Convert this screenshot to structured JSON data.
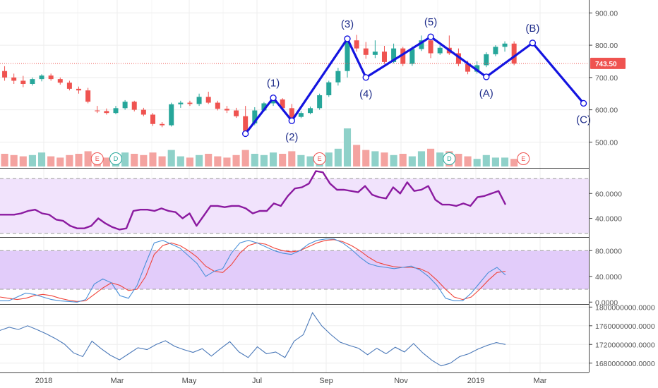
{
  "chart_data": [
    {
      "type": "candlestick",
      "panel": "price",
      "ylim": [
        420,
        940
      ],
      "y_ticks": [
        "500.00",
        "600.00",
        "700.00",
        "800.00",
        "900.00"
      ],
      "last_price": "743.50",
      "colors": {
        "up": "#26a69a",
        "down": "#ef5350",
        "wave": "#1414e0",
        "price_line": "#ef5350"
      },
      "candles": [
        {
          "o": 720,
          "h": 735,
          "l": 690,
          "c": 700
        },
        {
          "o": 700,
          "h": 712,
          "l": 680,
          "c": 690
        },
        {
          "o": 690,
          "h": 705,
          "l": 670,
          "c": 680
        },
        {
          "o": 680,
          "h": 700,
          "l": 675,
          "c": 695
        },
        {
          "o": 695,
          "h": 710,
          "l": 688,
          "c": 706
        },
        {
          "o": 706,
          "h": 712,
          "l": 690,
          "c": 695
        },
        {
          "o": 695,
          "h": 700,
          "l": 678,
          "c": 684
        },
        {
          "o": 684,
          "h": 690,
          "l": 660,
          "c": 665
        },
        {
          "o": 665,
          "h": 672,
          "l": 650,
          "c": 660
        },
        {
          "o": 660,
          "h": 668,
          "l": 620,
          "c": 625
        },
        {
          "o": 598,
          "h": 612,
          "l": 590,
          "c": 596
        },
        {
          "o": 596,
          "h": 604,
          "l": 585,
          "c": 590
        },
        {
          "o": 590,
          "h": 612,
          "l": 586,
          "c": 605
        },
        {
          "o": 605,
          "h": 630,
          "l": 600,
          "c": 625
        },
        {
          "o": 625,
          "h": 628,
          "l": 595,
          "c": 600
        },
        {
          "o": 600,
          "h": 606,
          "l": 580,
          "c": 585
        },
        {
          "o": 585,
          "h": 590,
          "l": 550,
          "c": 556
        },
        {
          "o": 556,
          "h": 562,
          "l": 546,
          "c": 552
        },
        {
          "o": 552,
          "h": 622,
          "l": 548,
          "c": 617
        },
        {
          "o": 617,
          "h": 628,
          "l": 606,
          "c": 622
        },
        {
          "o": 622,
          "h": 628,
          "l": 612,
          "c": 618
        },
        {
          "o": 618,
          "h": 650,
          "l": 612,
          "c": 640
        },
        {
          "o": 640,
          "h": 656,
          "l": 618,
          "c": 622
        },
        {
          "o": 622,
          "h": 628,
          "l": 598,
          "c": 603
        },
        {
          "o": 603,
          "h": 612,
          "l": 590,
          "c": 598
        },
        {
          "o": 598,
          "h": 606,
          "l": 575,
          "c": 580
        },
        {
          "o": 580,
          "h": 612,
          "l": 535,
          "c": 535
        },
        {
          "o": 558,
          "h": 608,
          "l": 552,
          "c": 598
        },
        {
          "o": 598,
          "h": 624,
          "l": 594,
          "c": 620
        },
        {
          "o": 620,
          "h": 640,
          "l": 612,
          "c": 632
        },
        {
          "o": 632,
          "h": 636,
          "l": 600,
          "c": 605
        },
        {
          "o": 605,
          "h": 618,
          "l": 560,
          "c": 565
        },
        {
          "o": 578,
          "h": 596,
          "l": 574,
          "c": 590
        },
        {
          "o": 590,
          "h": 610,
          "l": 586,
          "c": 605
        },
        {
          "o": 605,
          "h": 650,
          "l": 600,
          "c": 645
        },
        {
          "o": 645,
          "h": 690,
          "l": 640,
          "c": 685
        },
        {
          "o": 685,
          "h": 730,
          "l": 675,
          "c": 720
        },
        {
          "o": 720,
          "h": 830,
          "l": 700,
          "c": 815
        },
        {
          "o": 815,
          "h": 832,
          "l": 780,
          "c": 790
        },
        {
          "o": 790,
          "h": 810,
          "l": 758,
          "c": 770
        },
        {
          "o": 770,
          "h": 815,
          "l": 760,
          "c": 780
        },
        {
          "o": 780,
          "h": 798,
          "l": 742,
          "c": 748
        },
        {
          "o": 748,
          "h": 805,
          "l": 744,
          "c": 790
        },
        {
          "o": 790,
          "h": 795,
          "l": 735,
          "c": 742
        },
        {
          "o": 742,
          "h": 796,
          "l": 736,
          "c": 788
        },
        {
          "o": 788,
          "h": 830,
          "l": 782,
          "c": 815
        },
        {
          "o": 815,
          "h": 825,
          "l": 760,
          "c": 775
        },
        {
          "o": 775,
          "h": 800,
          "l": 770,
          "c": 792
        },
        {
          "o": 792,
          "h": 830,
          "l": 770,
          "c": 775
        },
        {
          "o": 775,
          "h": 790,
          "l": 735,
          "c": 742
        },
        {
          "o": 742,
          "h": 752,
          "l": 710,
          "c": 718
        },
        {
          "o": 718,
          "h": 750,
          "l": 712,
          "c": 738
        },
        {
          "o": 738,
          "h": 778,
          "l": 732,
          "c": 772
        },
        {
          "o": 772,
          "h": 800,
          "l": 766,
          "c": 795
        },
        {
          "o": 795,
          "h": 812,
          "l": 780,
          "c": 805
        },
        {
          "o": 805,
          "h": 812,
          "l": 738,
          "c": 743
        }
      ],
      "volume": [
        {
          "v": 20,
          "up": false
        },
        {
          "v": 18,
          "up": false
        },
        {
          "v": 16,
          "up": false
        },
        {
          "v": 18,
          "up": true
        },
        {
          "v": 22,
          "up": true
        },
        {
          "v": 16,
          "up": false
        },
        {
          "v": 14,
          "up": false
        },
        {
          "v": 18,
          "up": false
        },
        {
          "v": 20,
          "up": false
        },
        {
          "v": 24,
          "up": false
        },
        {
          "v": 16,
          "up": false
        },
        {
          "v": 14,
          "up": false
        },
        {
          "v": 18,
          "up": true
        },
        {
          "v": 22,
          "up": true
        },
        {
          "v": 20,
          "up": false
        },
        {
          "v": 18,
          "up": false
        },
        {
          "v": 22,
          "up": false
        },
        {
          "v": 16,
          "up": false
        },
        {
          "v": 26,
          "up": true
        },
        {
          "v": 16,
          "up": true
        },
        {
          "v": 14,
          "up": false
        },
        {
          "v": 18,
          "up": true
        },
        {
          "v": 20,
          "up": false
        },
        {
          "v": 16,
          "up": false
        },
        {
          "v": 14,
          "up": false
        },
        {
          "v": 18,
          "up": false
        },
        {
          "v": 26,
          "up": false
        },
        {
          "v": 20,
          "up": true
        },
        {
          "v": 18,
          "up": true
        },
        {
          "v": 22,
          "up": true
        },
        {
          "v": 20,
          "up": false
        },
        {
          "v": 24,
          "up": false
        },
        {
          "v": 18,
          "up": true
        },
        {
          "v": 16,
          "up": true
        },
        {
          "v": 20,
          "up": true
        },
        {
          "v": 22,
          "up": true
        },
        {
          "v": 28,
          "up": true
        },
        {
          "v": 60,
          "up": true
        },
        {
          "v": 34,
          "up": false
        },
        {
          "v": 26,
          "up": false
        },
        {
          "v": 24,
          "up": true
        },
        {
          "v": 22,
          "up": false
        },
        {
          "v": 18,
          "up": true
        },
        {
          "v": 20,
          "up": false
        },
        {
          "v": 16,
          "up": true
        },
        {
          "v": 24,
          "up": true
        },
        {
          "v": 28,
          "up": false
        },
        {
          "v": 22,
          "up": true
        },
        {
          "v": 24,
          "up": false
        },
        {
          "v": 20,
          "up": false
        },
        {
          "v": 16,
          "up": false
        },
        {
          "v": 12,
          "up": true
        },
        {
          "v": 18,
          "up": true
        },
        {
          "v": 14,
          "up": true
        },
        {
          "v": 14,
          "up": true
        },
        {
          "v": 12,
          "up": false
        }
      ],
      "events": [
        {
          "label": "E",
          "kind": "earnings",
          "index": 10
        },
        {
          "label": "D",
          "kind": "dividend",
          "index": 12
        },
        {
          "label": "E",
          "kind": "earnings",
          "index": 34
        },
        {
          "label": "D",
          "kind": "dividend",
          "index": 48
        },
        {
          "label": "E",
          "kind": "earnings",
          "index": 56
        }
      ],
      "wave_points": [
        {
          "label": "",
          "index": 26,
          "value": 526
        },
        {
          "label": "(1)",
          "index": 29,
          "value": 637
        },
        {
          "label": "(2)",
          "index": 31,
          "value": 566
        },
        {
          "label": "(3)",
          "index": 37,
          "value": 820
        },
        {
          "label": "(4)",
          "index": 39,
          "value": 700
        },
        {
          "label": "(5)",
          "index": 46,
          "value": 826
        },
        {
          "label": "(A)",
          "index": 52,
          "value": 702
        },
        {
          "label": "(B)",
          "index": 57,
          "value": 807
        },
        {
          "label": "(C)",
          "index": 62.5,
          "value": 620
        }
      ]
    },
    {
      "type": "line",
      "panel": "rsi",
      "ylim": [
        25,
        80
      ],
      "y_ticks": [
        "40.0000",
        "60.0000"
      ],
      "band": [
        28,
        72
      ],
      "colors": {
        "line": "#8b1aa0",
        "band": "#f1e3fc",
        "band_edge": "#999999"
      },
      "values": [
        43,
        43,
        43,
        44,
        46,
        47,
        44,
        43,
        39,
        38,
        34,
        32,
        32,
        34,
        40,
        36,
        33,
        31,
        32,
        46,
        47,
        47,
        46,
        48,
        46,
        45,
        40,
        44,
        34,
        42,
        50,
        50,
        49,
        50,
        50,
        48,
        44,
        46,
        46,
        52,
        50,
        58,
        64,
        65,
        68,
        78,
        77,
        68,
        63,
        63,
        62,
        61,
        66,
        59,
        57,
        56,
        65,
        60,
        69,
        62,
        63,
        66,
        55,
        51,
        51,
        50,
        52,
        50,
        57,
        58,
        60,
        62,
        51
      ]
    },
    {
      "type": "line",
      "panel": "stochastic",
      "ylim": [
        -3,
        100
      ],
      "y_ticks": [
        "0.0000",
        "40.0000",
        "80.0000"
      ],
      "band": [
        20,
        80
      ],
      "colors": {
        "k": "#4a90d9",
        "d": "#f0443a",
        "band": "#e2ccfa",
        "band_edge": "#999999"
      },
      "k_values": [
        2,
        2,
        8,
        14,
        12,
        8,
        4,
        2,
        1,
        0,
        4,
        28,
        36,
        30,
        10,
        6,
        26,
        60,
        92,
        96,
        90,
        84,
        72,
        60,
        40,
        48,
        52,
        76,
        92,
        96,
        92,
        86,
        80,
        76,
        74,
        80,
        90,
        96,
        98,
        98,
        92,
        82,
        70,
        60,
        56,
        54,
        52,
        54,
        56,
        50,
        40,
        26,
        6,
        2,
        2,
        14,
        30,
        46,
        54,
        42
      ],
      "d_values": [
        8,
        6,
        4,
        6,
        10,
        12,
        10,
        6,
        3,
        1,
        2,
        12,
        22,
        30,
        26,
        18,
        20,
        40,
        74,
        88,
        92,
        88,
        80,
        70,
        56,
        48,
        46,
        58,
        76,
        88,
        92,
        90,
        84,
        80,
        78,
        80,
        86,
        92,
        96,
        97,
        94,
        88,
        80,
        70,
        62,
        58,
        55,
        54,
        54,
        52,
        46,
        34,
        20,
        8,
        4,
        8,
        20,
        34,
        46,
        48
      ]
    },
    {
      "type": "line",
      "panel": "volume_indicator",
      "ylim": [
        1660000000,
        1805000000
      ],
      "y_ticks": [
        "1680000000.0000",
        "1720000000.0000",
        "1760000000.0000",
        "1800000000.0000"
      ],
      "colors": {
        "line": "#4a78b8"
      },
      "values": [
        1750000000,
        1757000000,
        1752000000,
        1760000000,
        1752000000,
        1743000000,
        1733000000,
        1721000000,
        1702000000,
        1694000000,
        1727000000,
        1711000000,
        1697000000,
        1687000000,
        1700000000,
        1713000000,
        1709000000,
        1720000000,
        1728000000,
        1716000000,
        1709000000,
        1703000000,
        1711000000,
        1695000000,
        1711000000,
        1726000000,
        1704000000,
        1692000000,
        1715000000,
        1700000000,
        1704000000,
        1692000000,
        1727000000,
        1741000000,
        1788000000,
        1760000000,
        1741000000,
        1725000000,
        1718000000,
        1712000000,
        1698000000,
        1712000000,
        1700000000,
        1714000000,
        1704000000,
        1722000000,
        1702000000,
        1686000000,
        1674000000,
        1680000000,
        1694000000,
        1700000000,
        1710000000,
        1718000000,
        1724000000,
        1720000000
      ]
    }
  ],
  "x_axis": {
    "months": [
      "2018",
      "Mar",
      "May",
      "Jul",
      "Sep",
      "Nov",
      "2019",
      "Mar"
    ]
  }
}
